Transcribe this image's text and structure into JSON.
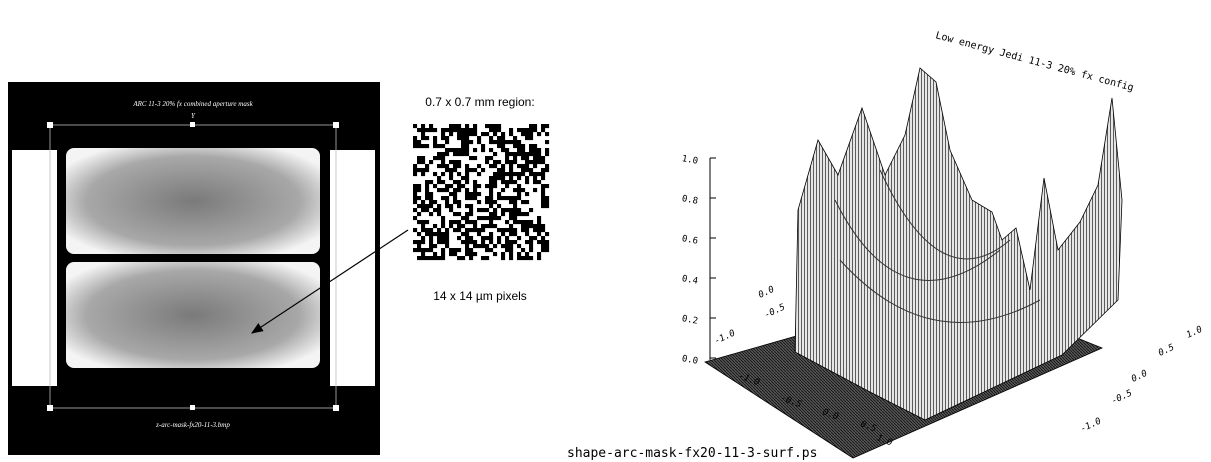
{
  "left_panel": {
    "title": "ARC 11-3 20% fx combined aperture mask",
    "axis_label": "Y",
    "filename": "z-arc-mask-fx20-11-3.bmp"
  },
  "middle_panel": {
    "region_label": "0.7 x 0.7 mm region:",
    "pixel_label": "14 x 14 µm pixels"
  },
  "right_panel": {
    "title": "Low energy Jedi 11-3 20% fx config",
    "z_ticks": [
      "1.0",
      "0.8",
      "0.6",
      "0.4",
      "0.2",
      "0.0"
    ],
    "front_ticks": [
      "-1.0",
      "-0.5",
      "0.0",
      "0.5",
      "1.0"
    ],
    "right_ticks": [
      "1.0",
      "0.5",
      "0.0",
      "-0.5",
      "-1.0"
    ],
    "back_ticks": [
      "0.0",
      "-0.5",
      "-1.0"
    ],
    "filename": "shape-arc-mask-fx20-11-3-surf.ps"
  }
}
